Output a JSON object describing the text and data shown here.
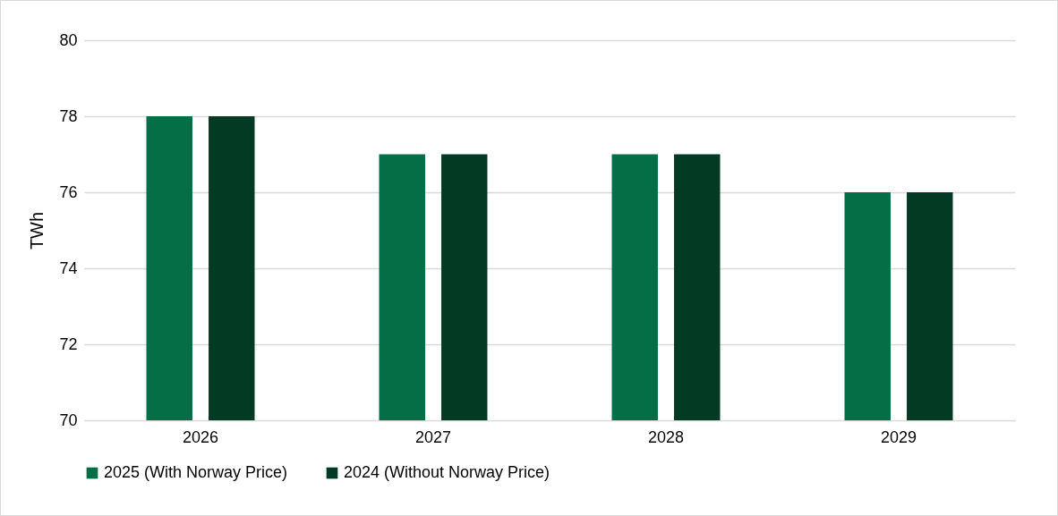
{
  "chart_data": {
    "type": "bar",
    "ylabel": "TWh",
    "categories": [
      "2026",
      "2027",
      "2028",
      "2029"
    ],
    "series": [
      {
        "name": "2025 (With Norway Price)",
        "color": "#046e47",
        "values": [
          78,
          77,
          77,
          76
        ]
      },
      {
        "name": "2024 (Without Norway Price)",
        "color": "#023a24",
        "values": [
          78,
          77,
          77,
          76
        ]
      }
    ],
    "ylim": [
      70,
      80
    ],
    "yticks": [
      70,
      72,
      74,
      76,
      78,
      80
    ],
    "grid": "y",
    "legend": "bottom"
  }
}
